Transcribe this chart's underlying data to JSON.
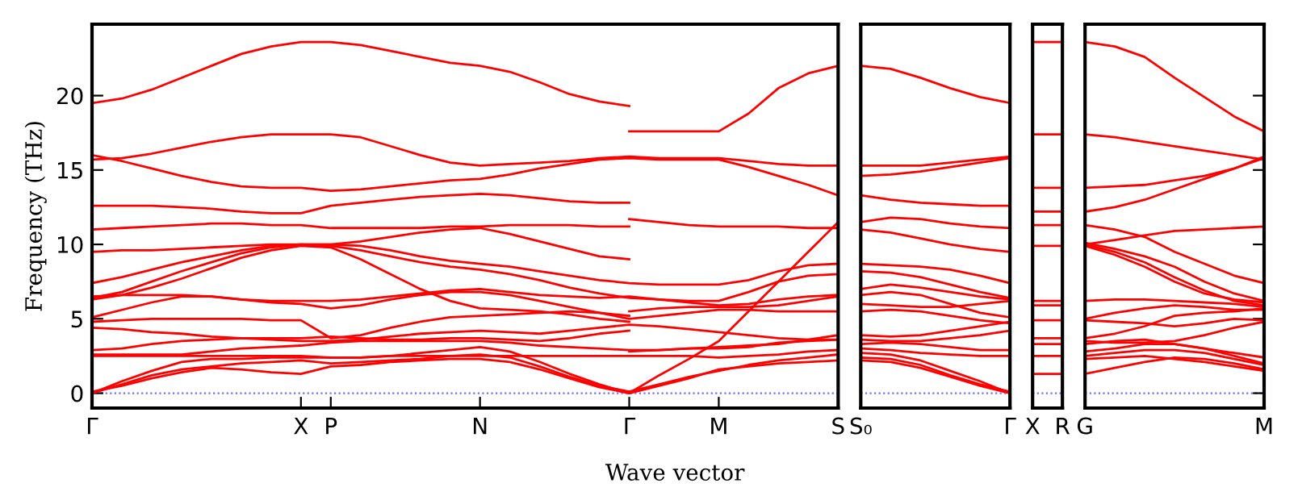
{
  "chart_data": [
    {
      "type": "line",
      "ylabel": "Frequency (THz)",
      "xlabel": "Wave vector",
      "ylim": [
        -1,
        24.8
      ],
      "yticks": [
        0,
        5,
        10,
        15,
        20
      ],
      "categories": [
        "Γ",
        null,
        null,
        null,
        null,
        null,
        null,
        "X",
        "P",
        null,
        null,
        null,
        null,
        "N",
        null,
        null,
        null,
        null,
        "Γ",
        null,
        null,
        "M",
        null,
        null,
        null,
        "S"
      ],
      "ref_lines": [
        {
          "axis": "y",
          "value": 0,
          "color": "#7070ff",
          "line_style": "dotted"
        }
      ],
      "series": [
        {
          "color": "#ff0000",
          "values": [
            19.5,
            19.8,
            20.4,
            21.2,
            22.0,
            22.8,
            23.3,
            23.6,
            23.6,
            23.4,
            23.0,
            22.6,
            22.2,
            22.0,
            21.6,
            20.9,
            20.1,
            19.6,
            19.3,
            null,
            null,
            null,
            null,
            null,
            null,
            null
          ]
        },
        {
          "color": "#ff0000",
          "values": [
            15.7,
            15.8,
            16.1,
            16.5,
            16.9,
            17.2,
            17.4,
            17.4,
            17.4,
            17.2,
            16.6,
            16.0,
            15.5,
            15.3,
            15.4,
            15.5,
            15.6,
            15.8,
            15.9,
            15.8,
            15.8,
            15.8,
            15.6,
            15.4,
            15.3,
            15.3
          ]
        },
        {
          "color": "#ff0000",
          "values": [
            16.0,
            15.6,
            15.1,
            14.6,
            14.2,
            13.9,
            13.8,
            13.8,
            13.6,
            13.7,
            13.9,
            14.1,
            14.3,
            14.4,
            14.7,
            15.1,
            15.4,
            15.7,
            15.8,
            15.7,
            15.7,
            15.7,
            15.2,
            14.6,
            14.0,
            13.3
          ]
        },
        {
          "color": "#ff0000",
          "values": [
            12.6,
            12.6,
            12.6,
            12.5,
            12.4,
            12.2,
            12.1,
            12.1,
            12.6,
            12.8,
            13.0,
            13.2,
            13.3,
            13.4,
            13.3,
            13.1,
            12.9,
            12.8,
            12.8,
            null,
            null,
            null,
            null,
            null,
            null,
            null
          ]
        },
        {
          "color": "#ff0000",
          "values": [
            11.0,
            11.1,
            11.2,
            11.3,
            11.4,
            11.4,
            11.3,
            11.3,
            11.1,
            11.1,
            11.1,
            11.1,
            11.2,
            11.2,
            11.3,
            11.3,
            11.3,
            11.2,
            11.2,
            null,
            null,
            null,
            null,
            null,
            null,
            null
          ]
        },
        {
          "color": "#ff0000",
          "values": [
            9.5,
            9.6,
            9.6,
            9.7,
            9.8,
            9.9,
            10.0,
            10.0,
            10.0,
            10.2,
            10.5,
            10.8,
            11.0,
            11.1,
            10.7,
            10.2,
            9.7,
            9.2,
            9.0,
            null,
            null,
            null,
            null,
            null,
            null,
            null
          ]
        },
        {
          "color": "#ff0000",
          "values": [
            7.4,
            7.8,
            8.3,
            8.8,
            9.2,
            9.6,
            9.9,
            10.0,
            10.0,
            9.9,
            9.6,
            9.2,
            8.9,
            8.7,
            8.5,
            8.2,
            7.9,
            7.6,
            7.4,
            7.3,
            7.3,
            7.3,
            7.6,
            8.2,
            8.6,
            8.7
          ]
        },
        {
          "color": "#ff0000",
          "values": [
            6.4,
            6.8,
            7.5,
            8.2,
            8.8,
            9.4,
            9.8,
            10.0,
            9.9,
            9.6,
            9.2,
            8.8,
            8.5,
            8.3,
            8.0,
            7.6,
            7.1,
            6.7,
            6.4,
            6.3,
            6.2,
            6.2,
            6.8,
            7.5,
            7.9,
            8.0
          ]
        },
        {
          "color": "#ff0000",
          "values": [
            6.3,
            6.6,
            7.1,
            7.7,
            8.4,
            9.1,
            9.6,
            9.9,
            9.8,
            9.0,
            8.0,
            7.0,
            6.2,
            5.7,
            5.6,
            5.5,
            5.3,
            5.0,
            4.8,
            null,
            null,
            null,
            null,
            null,
            null,
            null
          ]
        },
        {
          "color": "#ff0000",
          "values": [
            6.5,
            6.6,
            6.6,
            6.6,
            6.5,
            6.3,
            6.2,
            6.2,
            6.2,
            6.3,
            6.5,
            6.7,
            6.9,
            7.0,
            6.8,
            6.6,
            6.5,
            6.4,
            6.5,
            6.3,
            6.1,
            5.9,
            6.0,
            6.3,
            6.5,
            6.6
          ]
        },
        {
          "color": "#ff0000",
          "values": [
            5.1,
            5.6,
            6.1,
            6.5,
            6.5,
            6.3,
            6.1,
            6.0,
            5.7,
            5.9,
            6.3,
            6.6,
            6.8,
            6.8,
            6.6,
            6.2,
            5.8,
            5.4,
            5.0,
            5.2,
            5.4,
            5.6,
            5.6,
            5.5,
            5.5,
            5.5
          ]
        },
        {
          "color": "#ff0000",
          "values": [
            4.8,
            4.9,
            5.0,
            5.0,
            5.0,
            5.0,
            4.9,
            4.9,
            3.7,
            3.9,
            4.4,
            4.8,
            5.1,
            5.2,
            5.3,
            5.4,
            5.5,
            5.4,
            5.2,
            null,
            null,
            null,
            null,
            null,
            null,
            null
          ]
        },
        {
          "color": "#ff0000",
          "values": [
            4.4,
            4.3,
            4.1,
            4.0,
            3.8,
            3.7,
            3.6,
            3.5,
            3.5,
            3.6,
            3.8,
            4.0,
            4.1,
            4.2,
            4.1,
            4.0,
            4.2,
            4.4,
            4.6,
            4.5,
            4.3,
            4.1,
            3.9,
            3.7,
            3.6,
            3.6
          ]
        },
        {
          "color": "#ff0000",
          "values": [
            2.9,
            3.0,
            3.3,
            3.5,
            3.6,
            3.7,
            3.7,
            3.7,
            3.8,
            3.7,
            3.6,
            3.6,
            3.7,
            3.7,
            3.6,
            3.5,
            3.7,
            4.0,
            4.2,
            null,
            null,
            null,
            null,
            null,
            null,
            null
          ]
        },
        {
          "color": "#ff0000",
          "values": [
            2.6,
            2.6,
            2.6,
            2.6,
            2.8,
            3.0,
            3.1,
            3.2,
            3.4,
            3.5,
            3.5,
            3.5,
            3.5,
            3.5,
            3.4,
            3.2,
            3.1,
            3.0,
            2.9,
            2.9,
            3.0,
            3.1,
            3.2,
            3.3,
            3.6,
            3.9
          ]
        },
        {
          "color": "#ff0000",
          "values": [
            2.5,
            2.5,
            2.5,
            2.5,
            2.5,
            2.5,
            2.5,
            2.5,
            2.4,
            2.4,
            2.5,
            2.5,
            2.5,
            2.5,
            2.5,
            2.5,
            2.5,
            2.5,
            2.5,
            2.5,
            2.5,
            2.4,
            2.5,
            2.6,
            2.8,
            2.9
          ]
        },
        {
          "color": "#ff0000",
          "values": [
            0,
            0.8,
            1.5,
            2.1,
            2.3,
            2.3,
            2.4,
            2.4,
            2.4,
            2.4,
            2.5,
            2.7,
            2.9,
            3.1,
            2.8,
            2.1,
            1.3,
            0.6,
            0,
            1.2,
            2.3,
            3.5,
            5.5,
            7.5,
            9.5,
            11.5
          ]
        },
        {
          "color": "#ff0000",
          "values": [
            0,
            0.6,
            1.2,
            1.6,
            1.8,
            2.0,
            2.1,
            2.2,
            2.0,
            2.1,
            2.2,
            2.3,
            2.5,
            2.6,
            2.4,
            1.8,
            1.1,
            0.5,
            0.1,
            0.6,
            1.1,
            1.5,
            1.9,
            2.2,
            2.4,
            2.6
          ]
        },
        {
          "color": "#ff0000",
          "values": [
            0.1,
            0.5,
            1.0,
            1.4,
            1.7,
            1.6,
            1.4,
            1.3,
            1.8,
            1.9,
            2.1,
            2.2,
            2.3,
            2.3,
            2.1,
            1.6,
            1.0,
            0.4,
            0,
            0.5,
            1.0,
            1.6,
            1.8,
            2.0,
            2.1,
            2.2
          ]
        },
        {
          "color": "#ff0000",
          "values": [
            null,
            null,
            null,
            null,
            null,
            null,
            null,
            null,
            null,
            null,
            null,
            null,
            null,
            null,
            null,
            null,
            null,
            null,
            17.6,
            17.6,
            17.6,
            17.6,
            18.8,
            20.5,
            21.5,
            22.0
          ]
        },
        {
          "color": "#ff0000",
          "values": [
            null,
            null,
            null,
            null,
            null,
            null,
            null,
            null,
            null,
            null,
            null,
            null,
            null,
            null,
            null,
            null,
            null,
            null,
            11.7,
            11.5,
            11.3,
            11.2,
            11.2,
            11.2,
            11.1,
            11.1
          ]
        },
        {
          "color": "#ff0000",
          "values": [
            null,
            null,
            null,
            null,
            null,
            null,
            null,
            null,
            null,
            null,
            null,
            null,
            null,
            null,
            null,
            null,
            null,
            null,
            5.5,
            5.7,
            5.8,
            5.8,
            5.8,
            5.9,
            6.2,
            6.5
          ]
        },
        {
          "color": "#ff0000",
          "values": [
            null,
            null,
            null,
            null,
            null,
            null,
            null,
            null,
            null,
            null,
            null,
            null,
            null,
            null,
            null,
            null,
            null,
            null,
            2.8,
            2.9,
            3.0,
            3.0,
            3.1,
            3.4,
            3.5,
            3.6
          ]
        }
      ]
    },
    {
      "type": "line",
      "tick_labels": "x",
      "ylim": [
        -1,
        24.8
      ],
      "categories": [
        "S₀",
        null,
        null,
        null,
        null,
        "Γ"
      ],
      "ref_lines": [
        {
          "axis": "y",
          "value": 0,
          "color": "#7070ff",
          "line_style": "dotted"
        }
      ],
      "series": [
        {
          "color": "#ff0000",
          "values": [
            22.0,
            21.8,
            21.2,
            20.5,
            19.9,
            19.5
          ]
        },
        {
          "color": "#ff0000",
          "values": [
            15.3,
            15.3,
            15.3,
            15.5,
            15.7,
            15.9
          ]
        },
        {
          "color": "#ff0000",
          "values": [
            14.6,
            14.7,
            14.9,
            15.2,
            15.5,
            15.8
          ]
        },
        {
          "color": "#ff0000",
          "values": [
            13.3,
            13.0,
            12.8,
            12.7,
            12.6,
            12.6
          ]
        },
        {
          "color": "#ff0000",
          "values": [
            11.5,
            11.8,
            11.7,
            11.4,
            11.2,
            11.1
          ]
        },
        {
          "color": "#ff0000",
          "values": [
            11.0,
            10.8,
            10.4,
            10.0,
            9.7,
            9.5
          ]
        },
        {
          "color": "#ff0000",
          "values": [
            8.7,
            8.6,
            8.5,
            8.3,
            7.9,
            7.4
          ]
        },
        {
          "color": "#ff0000",
          "values": [
            8.2,
            8.1,
            7.8,
            7.3,
            6.8,
            6.4
          ]
        },
        {
          "color": "#ff0000",
          "values": [
            7.0,
            7.3,
            7.1,
            6.8,
            6.5,
            6.3
          ]
        },
        {
          "color": "#ff0000",
          "values": [
            6.6,
            6.8,
            6.6,
            6.0,
            5.4,
            5.1
          ]
        },
        {
          "color": "#ff0000",
          "values": [
            6.0,
            5.9,
            5.8,
            5.8,
            6.0,
            6.2
          ]
        },
        {
          "color": "#ff0000",
          "values": [
            5.5,
            5.6,
            5.5,
            5.2,
            4.9,
            4.7
          ]
        },
        {
          "color": "#ff0000",
          "values": [
            3.9,
            3.8,
            3.9,
            4.2,
            4.5,
            4.8
          ]
        },
        {
          "color": "#ff0000",
          "values": [
            3.6,
            3.5,
            3.5,
            3.7,
            3.9,
            4.2
          ]
        },
        {
          "color": "#ff0000",
          "values": [
            3.3,
            3.4,
            3.3,
            3.1,
            2.9,
            2.9
          ]
        },
        {
          "color": "#ff0000",
          "values": [
            3.0,
            2.9,
            2.7,
            2.6,
            2.5,
            2.5
          ]
        },
        {
          "color": "#ff0000",
          "values": [
            2.7,
            2.6,
            2.2,
            1.5,
            0.8,
            0
          ]
        },
        {
          "color": "#ff0000",
          "values": [
            2.4,
            2.3,
            1.9,
            1.2,
            0.6,
            0.1
          ]
        },
        {
          "color": "#ff0000",
          "values": [
            2.2,
            2.1,
            1.7,
            1.1,
            0.5,
            0
          ]
        }
      ]
    },
    {
      "type": "line",
      "tick_labels": "x",
      "ylim": [
        -1,
        24.8
      ],
      "categories": [
        "X",
        "R"
      ],
      "ref_lines": [
        {
          "axis": "y",
          "value": 0,
          "color": "#7070ff",
          "line_style": "dotted"
        }
      ],
      "series": [
        {
          "color": "#ff0000",
          "values": [
            23.6,
            23.6
          ]
        },
        {
          "color": "#ff0000",
          "values": [
            17.4,
            17.4
          ]
        },
        {
          "color": "#ff0000",
          "values": [
            13.8,
            13.8
          ]
        },
        {
          "color": "#ff0000",
          "values": [
            12.2,
            12.2
          ]
        },
        {
          "color": "#ff0000",
          "values": [
            11.3,
            11.3
          ]
        },
        {
          "color": "#ff0000",
          "values": [
            9.9,
            9.9
          ]
        },
        {
          "color": "#ff0000",
          "values": [
            6.2,
            6.2
          ]
        },
        {
          "color": "#ff0000",
          "values": [
            5.9,
            5.9
          ]
        },
        {
          "color": "#ff0000",
          "values": [
            4.9,
            4.9
          ]
        },
        {
          "color": "#ff0000",
          "values": [
            3.7,
            3.7
          ]
        },
        {
          "color": "#ff0000",
          "values": [
            3.3,
            3.3
          ]
        },
        {
          "color": "#ff0000",
          "values": [
            2.5,
            2.5
          ]
        },
        {
          "color": "#ff0000",
          "values": [
            1.3,
            1.3
          ]
        }
      ]
    },
    {
      "type": "line",
      "tick_labels": "x",
      "ylim": [
        -1,
        24.8
      ],
      "yticks": [
        {
          "value": 0,
          "label": null
        },
        {
          "value": 5,
          "label": null
        },
        {
          "value": 10,
          "label": null
        },
        {
          "value": 15,
          "label": null
        },
        {
          "value": 20,
          "label": null
        }
      ],
      "categories": [
        "G",
        null,
        null,
        null,
        null,
        null,
        "M"
      ],
      "ref_lines": [
        {
          "axis": "y",
          "value": 0,
          "color": "#7070ff",
          "line_style": "dotted"
        }
      ],
      "series": [
        {
          "color": "#ff0000",
          "values": [
            23.6,
            23.3,
            22.6,
            21.2,
            19.9,
            18.6,
            17.6
          ]
        },
        {
          "color": "#ff0000",
          "values": [
            17.4,
            17.2,
            16.9,
            16.6,
            16.3,
            16.0,
            15.7
          ]
        },
        {
          "color": "#ff0000",
          "values": [
            13.8,
            13.9,
            14.0,
            14.3,
            14.6,
            15.1,
            15.8
          ]
        },
        {
          "color": "#ff0000",
          "values": [
            12.2,
            12.5,
            13.0,
            13.7,
            14.4,
            15.1,
            15.9
          ]
        },
        {
          "color": "#ff0000",
          "values": [
            11.3,
            11.0,
            10.5,
            9.5,
            8.7,
            7.9,
            7.4
          ]
        },
        {
          "color": "#ff0000",
          "values": [
            10.0,
            10.3,
            10.6,
            10.9,
            11.0,
            11.1,
            11.2
          ]
        },
        {
          "color": "#ff0000",
          "values": [
            10.1,
            9.7,
            9.2,
            8.5,
            7.5,
            6.7,
            6.2
          ]
        },
        {
          "color": "#ff0000",
          "values": [
            10.0,
            9.5,
            8.8,
            7.8,
            6.9,
            6.2,
            5.9
          ]
        },
        {
          "color": "#ff0000",
          "values": [
            9.9,
            9.3,
            8.5,
            7.5,
            6.7,
            6.3,
            6.1
          ]
        },
        {
          "color": "#ff0000",
          "values": [
            6.2,
            6.3,
            6.3,
            6.2,
            6.1,
            6.0,
            5.8
          ]
        },
        {
          "color": "#ff0000",
          "values": [
            5.0,
            5.4,
            5.7,
            5.9,
            5.8,
            5.6,
            5.6
          ]
        },
        {
          "color": "#ff0000",
          "values": [
            4.9,
            4.8,
            4.7,
            4.5,
            4.7,
            5.0,
            4.9
          ]
        },
        {
          "color": "#ff0000",
          "values": [
            3.7,
            4.0,
            4.5,
            5.2,
            5.4,
            5.5,
            5.7
          ]
        },
        {
          "color": "#ff0000",
          "values": [
            3.5,
            3.4,
            3.4,
            3.5,
            3.9,
            4.4,
            4.8
          ]
        },
        {
          "color": "#ff0000",
          "values": [
            3.3,
            3.5,
            3.6,
            3.3,
            3.0,
            2.7,
            2.4
          ]
        },
        {
          "color": "#ff0000",
          "values": [
            2.8,
            3.0,
            3.3,
            3.3,
            3.0,
            2.5,
            2.0
          ]
        },
        {
          "color": "#ff0000",
          "values": [
            2.5,
            2.7,
            2.9,
            2.9,
            2.7,
            2.3,
            1.9
          ]
        },
        {
          "color": "#ff0000",
          "values": [
            2.3,
            2.4,
            2.5,
            2.3,
            2.1,
            1.8,
            1.5
          ]
        },
        {
          "color": "#ff0000",
          "values": [
            1.3,
            1.7,
            2.1,
            2.4,
            2.3,
            2.0,
            1.6
          ]
        }
      ]
    }
  ]
}
